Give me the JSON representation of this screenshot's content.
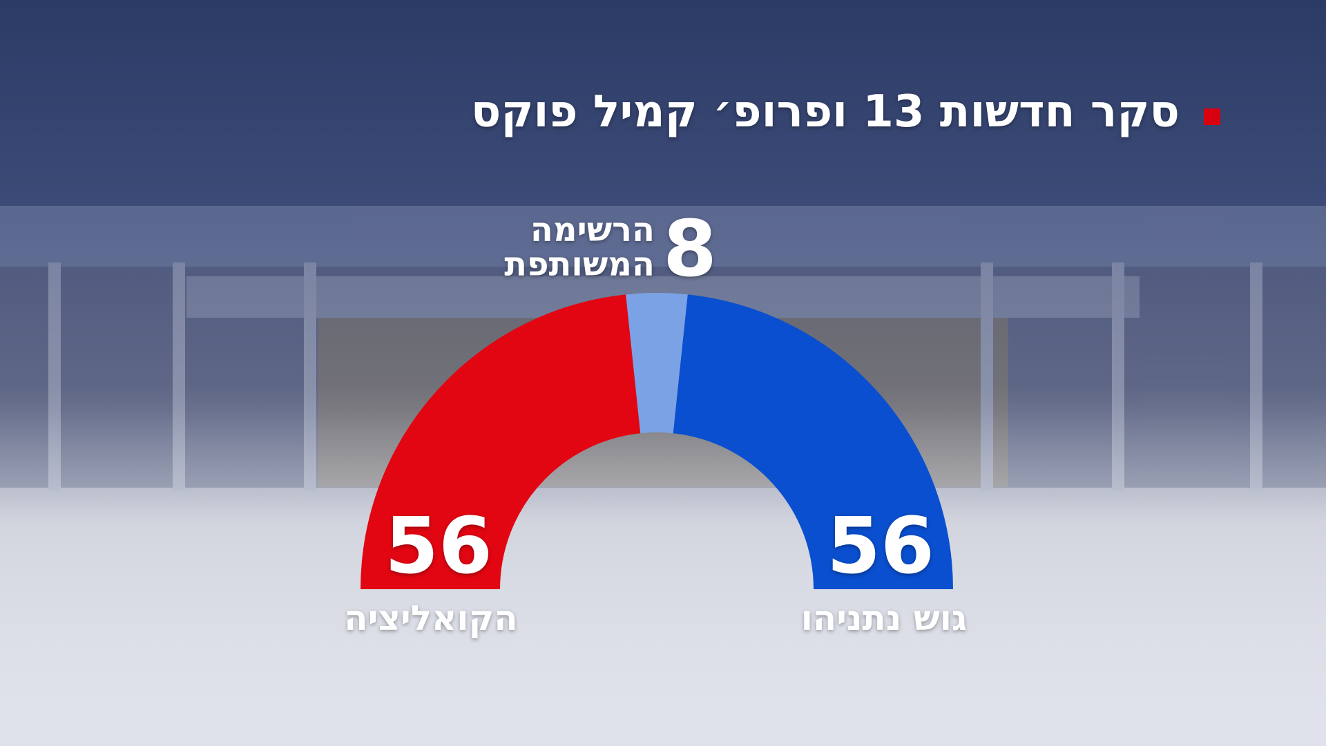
{
  "chart_data": {
    "type": "half-donut",
    "title": "סקר חדשות 13 ופרופ׳ קמיל פוקס",
    "categories": [
      "הקואליציה",
      "הרשימה המשותפת",
      "גוש נתניהו"
    ],
    "values": [
      56,
      8,
      56
    ],
    "colors": [
      "#e20612",
      "#7ca2e6",
      "#0a4fcf"
    ]
  }
}
